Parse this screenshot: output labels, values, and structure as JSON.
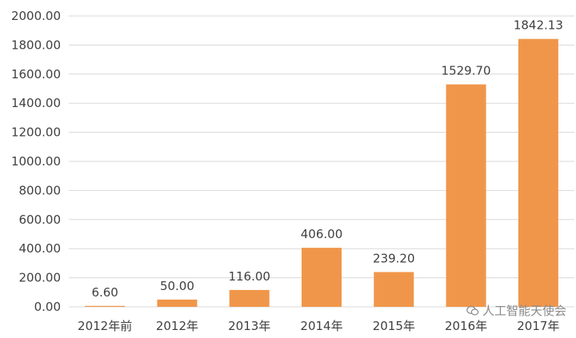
{
  "chart_data": {
    "type": "bar",
    "title": "",
    "xlabel": "",
    "ylabel": "",
    "categories": [
      "2012年前",
      "2012年",
      "2013年",
      "2014年",
      "2015年",
      "2016年",
      "2017年"
    ],
    "values": [
      6.6,
      50.0,
      116.0,
      406.0,
      239.2,
      1529.7,
      1842.13
    ],
    "value_labels": [
      "6.60",
      "50.00",
      "116.00",
      "406.00",
      "239.20",
      "1529.70",
      "1842.13"
    ],
    "ylim": [
      0,
      2000
    ],
    "yticks": [
      "0.00",
      "200.00",
      "400.00",
      "600.00",
      "800.00",
      "1000.00",
      "1200.00",
      "1400.00",
      "1600.00",
      "1800.00",
      "2000.00"
    ],
    "grid": true,
    "legend": "none",
    "colors": {
      "bar": "#F0964A",
      "grid": "#D9D9D9",
      "text": "#404040"
    }
  },
  "watermark": {
    "text": "人工智能天使会",
    "icon": "wechat-icon"
  }
}
